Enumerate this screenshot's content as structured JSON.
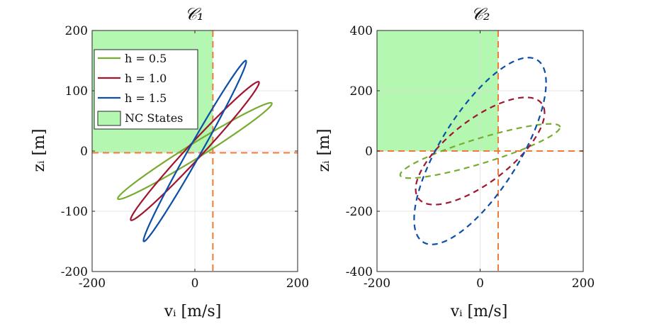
{
  "chart_data": [
    {
      "type": "line",
      "title": "𝒞₁",
      "xlabel": "vᵢ  [m/s]",
      "ylabel": "zᵢ  [m]",
      "xlim": [
        -200,
        200
      ],
      "ylim": [
        -200,
        200
      ],
      "xticks": [
        -200,
        0,
        200
      ],
      "yticks": [
        -200,
        -100,
        0,
        100,
        200
      ],
      "xtick_labels": [
        "-200",
        "0",
        "200"
      ],
      "ytick_labels": [
        "-200",
        "-100",
        "0",
        "100",
        "200"
      ],
      "grid": true,
      "threshold_v": 35,
      "threshold_z": -3,
      "region": {
        "name": "NC States",
        "v_range": [
          -200,
          35
        ],
        "z_range": [
          -3,
          200
        ],
        "color": "#b3f7b0"
      },
      "legend_position": "top-left",
      "series": [
        {
          "name": "h = 0.5",
          "color": "#77ac30",
          "style": "solid",
          "center": [
            0,
            0
          ],
          "amplitude": [
            150,
            80
          ],
          "phase": 0.18
        },
        {
          "name": "h = 1.0",
          "color": "#a2142f",
          "style": "solid",
          "center": [
            0,
            0
          ],
          "amplitude": [
            125,
            115
          ],
          "phase": 0.16
        },
        {
          "name": "h = 1.5",
          "color": "#0c4ea8",
          "style": "solid",
          "center": [
            0,
            0
          ],
          "amplitude": [
            100,
            150
          ],
          "phase": 0.14
        }
      ],
      "legend": [
        "h = 0.5",
        "h = 1.0",
        "h = 1.5",
        "NC States"
      ]
    },
    {
      "type": "line",
      "title": "𝒞₂",
      "xlabel": "vᵢ  [m/s]",
      "ylabel": "zᵢ  [m]",
      "xlim": [
        -200,
        200
      ],
      "ylim": [
        -400,
        400
      ],
      "xticks": [
        -200,
        0,
        200
      ],
      "yticks": [
        -400,
        -200,
        0,
        200,
        400
      ],
      "xtick_labels": [
        "-200",
        "0",
        "200"
      ],
      "ytick_labels": [
        "-400",
        "-200",
        "0",
        "200",
        "400"
      ],
      "grid": true,
      "threshold_v": 35,
      "threshold_z": 0,
      "region": {
        "name": "NC States",
        "v_range": [
          -200,
          35
        ],
        "z_range": [
          0,
          400
        ],
        "color": "#b3f7b0"
      },
      "series": [
        {
          "name": "h = 0.5",
          "color": "#77ac30",
          "style": "dashed",
          "center": [
            0,
            0
          ],
          "amplitude": [
            155,
            90
          ],
          "phase": 0.5
        },
        {
          "name": "h = 1.0",
          "color": "#a2142f",
          "style": "dashed",
          "center": [
            0,
            0
          ],
          "amplitude": [
            125,
            178
          ],
          "phase": 0.78
        },
        {
          "name": "h = 1.5",
          "color": "#0c4ea8",
          "style": "dashed",
          "center": [
            0,
            0
          ],
          "amplitude": [
            128,
            310
          ],
          "phase": 0.75
        }
      ]
    }
  ]
}
